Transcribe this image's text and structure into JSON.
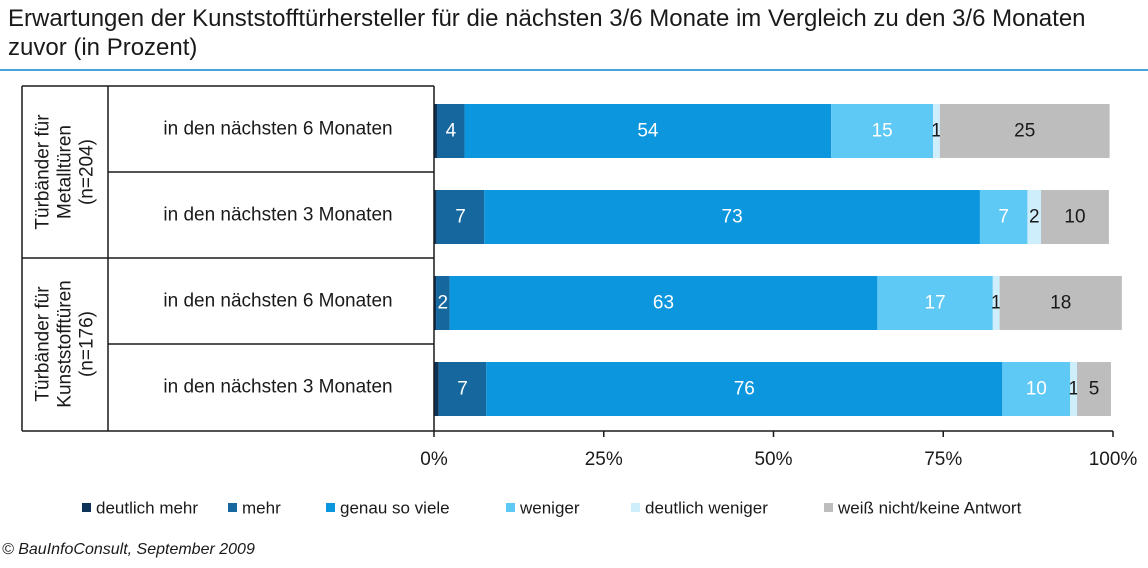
{
  "title": "Erwartungen der Kunststofftürhersteller für die nächsten 3/6 Monate im Vergleich zu den 3/6 Monaten zuvor (in Prozent)",
  "source": "© BauInfoConsult, September 2009",
  "chart_data": {
    "type": "bar",
    "orientation": "horizontal",
    "stacked": true,
    "groups": [
      {
        "label": "Türbänder für Metalltüren (n=204)",
        "label_lines": [
          "Türbänder für",
          "Metalltüren",
          "(n=204)"
        ]
      },
      {
        "label": "Türbänder für Kunststofftüren (n=176)",
        "label_lines": [
          "Türbänder für",
          "Kunststofftüren",
          "(n=176)"
        ]
      }
    ],
    "categories": [
      "in den nächsten 6 Monaten",
      "in den nächsten 3 Monaten",
      "in den nächsten 6 Monaten",
      "in den nächsten 3 Monaten"
    ],
    "category_group": [
      0,
      0,
      1,
      1
    ],
    "series": [
      {
        "name": "deutlich mehr",
        "color": "#0d3358",
        "values": [
          0.5,
          0.4,
          0.3,
          0.7
        ]
      },
      {
        "name": "mehr",
        "color": "#16679e",
        "values": [
          4,
          7,
          2,
          7
        ]
      },
      {
        "name": "genau so viele",
        "color": "#0b96de",
        "values": [
          54,
          73,
          63,
          76
        ]
      },
      {
        "name": "weniger",
        "color": "#5fc9f5",
        "values": [
          15,
          7,
          17,
          10
        ]
      },
      {
        "name": "deutlich weniger",
        "color": "#cfeefc",
        "values": [
          1,
          2,
          1,
          1
        ]
      },
      {
        "name": "weiß nicht/keine Antwort",
        "color": "#bdbdbd",
        "values": [
          25,
          10,
          18,
          5
        ]
      }
    ],
    "data_labels": [
      [
        "",
        "4",
        "54",
        "15",
        "1",
        "25"
      ],
      [
        "",
        "7",
        "73",
        "7",
        "2",
        "10"
      ],
      [
        "",
        "2",
        "63",
        "17",
        "1",
        "18"
      ],
      [
        "",
        "7",
        "76",
        "10",
        "1",
        "5"
      ]
    ],
    "label_colors": [
      "#ffffff",
      "#ffffff",
      "#ffffff",
      "#ffffff",
      "#1a1a1a",
      "#1a1a1a"
    ],
    "x_ticks": [
      "0%",
      "25%",
      "50%",
      "75%",
      "100%"
    ],
    "xlim": [
      0,
      100
    ],
    "xlabel": "",
    "ylabel": "",
    "legend_position": "bottom",
    "grid": false
  }
}
